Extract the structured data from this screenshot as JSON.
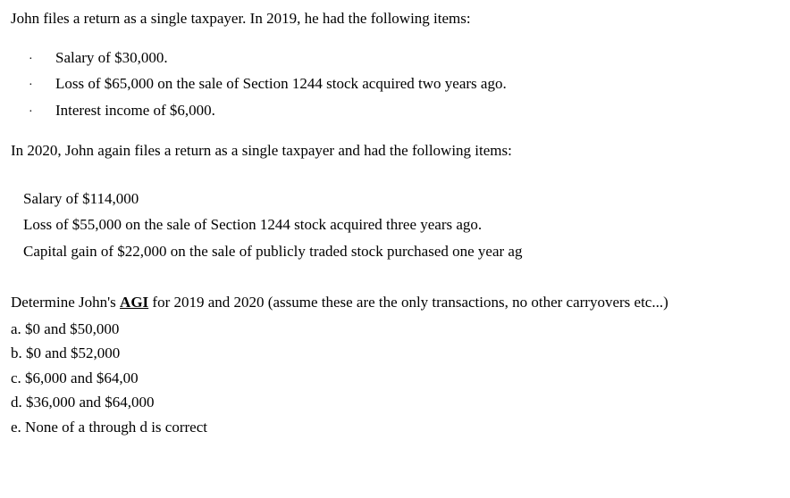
{
  "intro1": "John files a return as a single taxpayer. In 2019, he had the following items:",
  "bullets": [
    "Salary of $30,000.",
    "Loss of $65,000 on the sale of Section 1244 stock acquired two years ago.",
    "Interest income of $6,000."
  ],
  "intro2": "In 2020, John again files a return as a single taxpayer and had the following items:",
  "plain_items": [
    "Salary of $114,000",
    "Loss of $55,000 on the sale of Section 1244 stock acquired three years ago.",
    "Capital gain of $22,000 on the sale of publicly traded stock purchased one year ag"
  ],
  "question_pre": "Determine John's ",
  "question_bold": "AGI",
  "question_post": " for 2019 and 2020 (assume these are the only transactions, no other carryovers etc...)",
  "options": [
    "a. $0 and $50,000",
    "b. $0 and $52,000",
    "c. $6,000 and $64,00",
    "d. $36,000 and $64,000",
    "e. None of a through d is correct"
  ],
  "bullet_char": "·"
}
